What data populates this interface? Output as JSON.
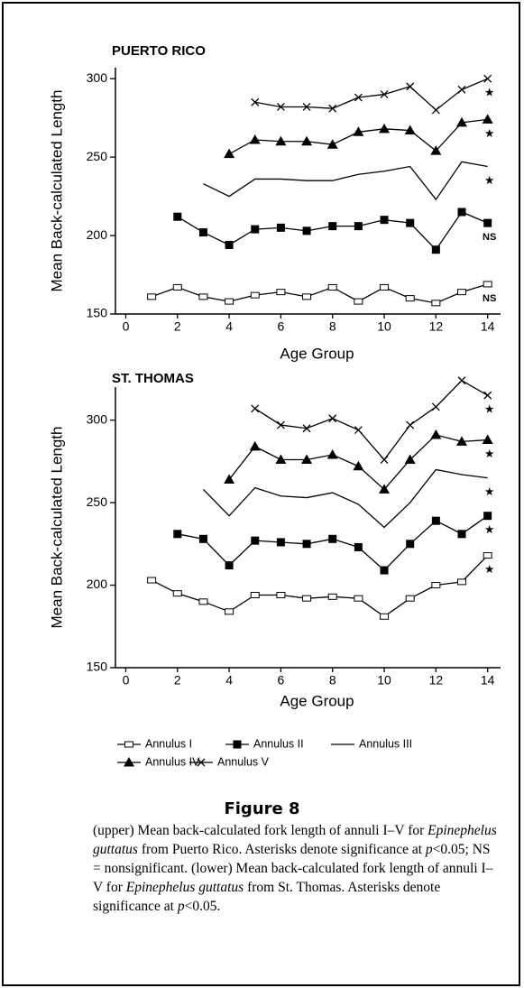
{
  "chart_data": [
    {
      "type": "line",
      "title": "PUERTO RICO",
      "xlabel": "Age Group",
      "ylabel": "Mean Back-calculated Length",
      "x": [
        1,
        2,
        3,
        4,
        5,
        6,
        7,
        8,
        9,
        10,
        11,
        12,
        13,
        14
      ],
      "xlim": [
        -0.4,
        14.5
      ],
      "xticks": [
        0,
        2,
        4,
        6,
        8,
        10,
        12,
        14
      ],
      "ylim": [
        150,
        307
      ],
      "yticks": [
        150,
        200,
        250,
        300
      ],
      "series": [
        {
          "name": "Annulus I",
          "marker": "open-square",
          "color": "#000000",
          "significance": "NS",
          "values": [
            161,
            167,
            161,
            158,
            162,
            164,
            161,
            167,
            158,
            167,
            160,
            157,
            164,
            169
          ]
        },
        {
          "name": "Annulus II",
          "marker": "square",
          "color": "#000000",
          "significance": "NS",
          "values": [
            null,
            212,
            202,
            194,
            204,
            205,
            203,
            206,
            206,
            210,
            208,
            191,
            215,
            208
          ]
        },
        {
          "name": "Annulus III",
          "marker": "none",
          "color": "#000000",
          "significance": "★",
          "values": [
            null,
            null,
            233,
            225,
            236,
            236,
            235,
            235,
            239,
            241,
            244,
            223,
            247,
            244
          ]
        },
        {
          "name": "Annulus IV",
          "marker": "triangle",
          "color": "#000000",
          "significance": "★",
          "values": [
            null,
            null,
            null,
            252,
            261,
            260,
            260,
            258,
            266,
            268,
            267,
            254,
            272,
            274
          ]
        },
        {
          "name": "Annulus V",
          "marker": "cross",
          "color": "#000000",
          "significance": "★",
          "values": [
            null,
            null,
            null,
            null,
            285,
            282,
            282,
            281,
            288,
            290,
            295,
            280,
            293,
            300
          ]
        }
      ]
    },
    {
      "type": "line",
      "title": "ST. THOMAS",
      "xlabel": "Age Group",
      "ylabel": "Mean Back-calculated Length",
      "x": [
        1,
        2,
        3,
        4,
        5,
        6,
        7,
        8,
        9,
        10,
        11,
        12,
        13,
        14
      ],
      "xlim": [
        -0.4,
        14.5
      ],
      "xticks": [
        0,
        2,
        4,
        6,
        8,
        10,
        12,
        14
      ],
      "ylim": [
        150,
        320
      ],
      "yticks": [
        150,
        200,
        250,
        300
      ],
      "series": [
        {
          "marker": "open-square",
          "color": "#000000",
          "significance": "★",
          "values": [
            203,
            195,
            190,
            184,
            194,
            194,
            192,
            193,
            192,
            181,
            192,
            200,
            202,
            218
          ]
        },
        {
          "marker": "square",
          "color": "#000000",
          "significance": "★",
          "values": [
            null,
            231,
            228,
            212,
            227,
            226,
            225,
            228,
            223,
            209,
            225,
            239,
            231,
            242
          ]
        },
        {
          "marker": "none",
          "color": "#000000",
          "significance": "★",
          "values": [
            null,
            null,
            258,
            242,
            259,
            254,
            253,
            256,
            249,
            235,
            250,
            270,
            267,
            265
          ]
        },
        {
          "marker": "triangle",
          "color": "#000000",
          "significance": "★",
          "values": [
            null,
            null,
            null,
            264,
            284,
            276,
            276,
            279,
            272,
            258,
            276,
            291,
            287,
            288
          ]
        },
        {
          "marker": "cross",
          "color": "#000000",
          "significance": "★",
          "values": [
            null,
            null,
            null,
            null,
            307,
            297,
            295,
            301,
            294,
            276,
            297,
            308,
            324,
            315
          ]
        }
      ]
    }
  ],
  "caption": {
    "title": "Figure 8",
    "segments": [
      {
        "text": "(upper) Mean back-calculated fork length of annuli I–V for ",
        "italic": false
      },
      {
        "text": "Epinephelus guttatus",
        "italic": true
      },
      {
        "text": " from Puerto Rico. Asterisks denote significance at ",
        "italic": false
      },
      {
        "text": "p",
        "italic": true
      },
      {
        "text": "<0.05; NS = nonsignificant. (lower) Mean back-calculated fork length of annuli I–V for ",
        "italic": false
      },
      {
        "text": "Epinephelus guttatus",
        "italic": true
      },
      {
        "text": " from St. Thomas. Asterisks denote significance at ",
        "italic": false
      },
      {
        "text": "p",
        "italic": true
      },
      {
        "text": "<0.05.",
        "italic": false
      }
    ]
  }
}
